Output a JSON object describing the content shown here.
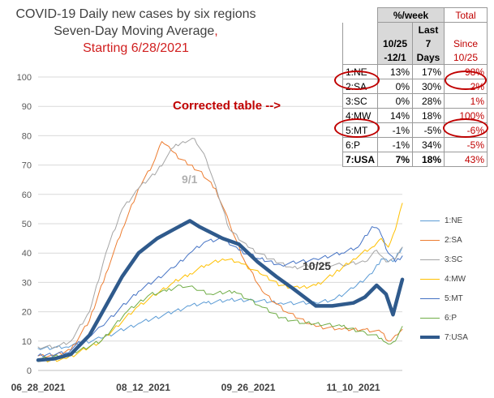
{
  "header": {
    "title_line1": "COVID-19 Daily new cases by six regions",
    "title_line2": "Seven-Day Moving Average",
    "title_line2_comma": ",",
    "title_line3": "Starting 6/28/2021"
  },
  "annotations": {
    "corrected_table": "Corrected table -->",
    "peak_label": "9/1",
    "recent_label": "10/25"
  },
  "table": {
    "head_pct": "%/week",
    "head_total": "Total",
    "head_last": "Last",
    "head_7": "7",
    "head_since": "Since",
    "head_range_a": "10/25",
    "head_range_b": "-12/1",
    "head_days": "Days",
    "head_since_date": "10/25",
    "rows": [
      {
        "label": "1:NE",
        "range": "13%",
        "last7": "17%",
        "total": "98%"
      },
      {
        "label": "2:SA",
        "range": "0%",
        "last7": "30%",
        "total": "2%"
      },
      {
        "label": "3:SC",
        "range": "0%",
        "last7": "28%",
        "total": "1%"
      },
      {
        "label": "4:MW",
        "range": "14%",
        "last7": "18%",
        "total": "100%"
      },
      {
        "label": "5:MT",
        "range": "-1%",
        "last7": "-5%",
        "total": "-6%"
      },
      {
        "label": "6:P",
        "range": "-1%",
        "last7": "34%",
        "total": "-5%"
      },
      {
        "label": "7:USA",
        "range": "7%",
        "last7": "18%",
        "total": "43%"
      }
    ]
  },
  "chart_data": {
    "type": "line",
    "title": "COVID-19 Daily new cases by six regions Seven-Day Moving Average, Starting 6/28/2021",
    "x_start": "2021-06-28",
    "x_end": "2021-12-01",
    "x_ticks": [
      "06_28_2021",
      "08_12_2021",
      "09_26_2021",
      "11_10_2021"
    ],
    "y_ticks": [
      "0",
      "10",
      "20",
      "30",
      "40",
      "50",
      "60",
      "70",
      "80",
      "90",
      "100"
    ],
    "ylim": [
      0,
      100
    ],
    "grid": true,
    "legend_position": "right",
    "series": [
      {
        "name": "1:NE",
        "color": "#5b9bd5",
        "width": 1,
        "points": [
          [
            "2021-06-28",
            7.5
          ],
          [
            "2021-07-10",
            8
          ],
          [
            "2021-07-25",
            11
          ],
          [
            "2021-08-10",
            16
          ],
          [
            "2021-08-25",
            20
          ],
          [
            "2021-09-01",
            22
          ],
          [
            "2021-09-08",
            23
          ],
          [
            "2021-09-18",
            24
          ],
          [
            "2021-09-28",
            24
          ],
          [
            "2021-10-10",
            23
          ],
          [
            "2021-10-25",
            23
          ],
          [
            "2021-11-01",
            24
          ],
          [
            "2021-11-10",
            28
          ],
          [
            "2021-11-18",
            33
          ],
          [
            "2021-11-22",
            38
          ],
          [
            "2021-11-25",
            37
          ],
          [
            "2021-11-28",
            38
          ],
          [
            "2021-12-01",
            42
          ]
        ]
      },
      {
        "name": "2:SA",
        "color": "#ed7d31",
        "width": 1,
        "points": [
          [
            "2021-06-28",
            5
          ],
          [
            "2021-07-05",
            5
          ],
          [
            "2021-07-12",
            7
          ],
          [
            "2021-07-20",
            17
          ],
          [
            "2021-07-27",
            33
          ],
          [
            "2021-08-03",
            48
          ],
          [
            "2021-08-10",
            62
          ],
          [
            "2021-08-16",
            70
          ],
          [
            "2021-08-20",
            78
          ],
          [
            "2021-08-24",
            75
          ],
          [
            "2021-08-28",
            72
          ],
          [
            "2021-09-01",
            70
          ],
          [
            "2021-09-05",
            68
          ],
          [
            "2021-09-12",
            62
          ],
          [
            "2021-09-18",
            50
          ],
          [
            "2021-09-24",
            38
          ],
          [
            "2021-10-02",
            27
          ],
          [
            "2021-10-12",
            20
          ],
          [
            "2021-10-25",
            15
          ],
          [
            "2021-11-05",
            14
          ],
          [
            "2021-11-15",
            14
          ],
          [
            "2021-11-22",
            13
          ],
          [
            "2021-11-25",
            10
          ],
          [
            "2021-11-28",
            12
          ],
          [
            "2021-12-01",
            14
          ]
        ]
      },
      {
        "name": "3:SC",
        "color": "#a5a5a5",
        "width": 1,
        "points": [
          [
            "2021-06-28",
            8
          ],
          [
            "2021-07-05",
            8
          ],
          [
            "2021-07-12",
            10
          ],
          [
            "2021-07-20",
            20
          ],
          [
            "2021-07-27",
            40
          ],
          [
            "2021-08-03",
            55
          ],
          [
            "2021-08-10",
            62
          ],
          [
            "2021-08-18",
            68
          ],
          [
            "2021-08-25",
            76
          ],
          [
            "2021-08-29",
            78
          ],
          [
            "2021-09-03",
            79
          ],
          [
            "2021-09-08",
            72
          ],
          [
            "2021-09-13",
            60
          ],
          [
            "2021-09-18",
            48
          ],
          [
            "2021-09-26",
            42
          ],
          [
            "2021-10-05",
            38
          ],
          [
            "2021-10-15",
            35
          ],
          [
            "2021-10-25",
            36
          ],
          [
            "2021-11-05",
            36
          ],
          [
            "2021-11-15",
            37
          ],
          [
            "2021-11-20",
            41
          ],
          [
            "2021-11-24",
            37
          ],
          [
            "2021-11-28",
            38
          ],
          [
            "2021-12-01",
            42
          ]
        ]
      },
      {
        "name": "4:MW",
        "color": "#ffc000",
        "width": 1,
        "points": [
          [
            "2021-06-28",
            3
          ],
          [
            "2021-07-10",
            4
          ],
          [
            "2021-07-25",
            10
          ],
          [
            "2021-08-10",
            22
          ],
          [
            "2021-08-25",
            30
          ],
          [
            "2021-09-01",
            33
          ],
          [
            "2021-09-08",
            36
          ],
          [
            "2021-09-15",
            38
          ],
          [
            "2021-09-22",
            37
          ],
          [
            "2021-10-01",
            33
          ],
          [
            "2021-10-10",
            29
          ],
          [
            "2021-10-18",
            28
          ],
          [
            "2021-10-25",
            29
          ],
          [
            "2021-11-02",
            33
          ],
          [
            "2021-11-10",
            38
          ],
          [
            "2021-11-18",
            42
          ],
          [
            "2021-11-22",
            45
          ],
          [
            "2021-11-25",
            42
          ],
          [
            "2021-11-28",
            48
          ],
          [
            "2021-12-01",
            57
          ]
        ]
      },
      {
        "name": "5:MT",
        "color": "#4472c4",
        "width": 1,
        "points": [
          [
            "2021-06-28",
            5
          ],
          [
            "2021-07-10",
            6
          ],
          [
            "2021-07-25",
            15
          ],
          [
            "2021-08-10",
            27
          ],
          [
            "2021-08-25",
            35
          ],
          [
            "2021-09-01",
            40
          ],
          [
            "2021-09-08",
            44
          ],
          [
            "2021-09-15",
            45
          ],
          [
            "2021-09-22",
            41
          ],
          [
            "2021-10-01",
            38
          ],
          [
            "2021-10-10",
            36
          ],
          [
            "2021-10-25",
            38
          ],
          [
            "2021-11-05",
            40
          ],
          [
            "2021-11-12",
            42
          ],
          [
            "2021-11-18",
            49
          ],
          [
            "2021-11-21",
            48
          ],
          [
            "2021-11-25",
            40
          ],
          [
            "2021-11-28",
            37
          ],
          [
            "2021-12-01",
            39
          ]
        ]
      },
      {
        "name": "6:P",
        "color": "#70ad47",
        "width": 1,
        "points": [
          [
            "2021-06-28",
            4
          ],
          [
            "2021-07-10",
            5
          ],
          [
            "2021-07-25",
            10
          ],
          [
            "2021-08-05",
            20
          ],
          [
            "2021-08-15",
            26
          ],
          [
            "2021-08-22",
            27
          ],
          [
            "2021-08-28",
            29
          ],
          [
            "2021-09-03",
            28
          ],
          [
            "2021-09-10",
            26
          ],
          [
            "2021-09-20",
            27
          ],
          [
            "2021-10-01",
            22
          ],
          [
            "2021-10-10",
            18
          ],
          [
            "2021-10-20",
            16
          ],
          [
            "2021-10-25",
            16
          ],
          [
            "2021-11-05",
            15
          ],
          [
            "2021-11-15",
            13
          ],
          [
            "2021-11-22",
            11
          ],
          [
            "2021-11-25",
            9
          ],
          [
            "2021-11-28",
            10
          ],
          [
            "2021-12-01",
            15
          ]
        ]
      },
      {
        "name": "7:USA",
        "color": "#2f5a8c",
        "width": 4.5,
        "points": [
          [
            "2021-06-28",
            3.5
          ],
          [
            "2021-07-05",
            4
          ],
          [
            "2021-07-12",
            5.5
          ],
          [
            "2021-07-20",
            12
          ],
          [
            "2021-07-27",
            22
          ],
          [
            "2021-08-03",
            32
          ],
          [
            "2021-08-10",
            40
          ],
          [
            "2021-08-18",
            45
          ],
          [
            "2021-08-25",
            48
          ],
          [
            "2021-09-01",
            51
          ],
          [
            "2021-09-05",
            49
          ],
          [
            "2021-09-10",
            47
          ],
          [
            "2021-09-15",
            45
          ],
          [
            "2021-09-22",
            43
          ],
          [
            "2021-09-30",
            37
          ],
          [
            "2021-10-08",
            32
          ],
          [
            "2021-10-15",
            28
          ],
          [
            "2021-10-25",
            22
          ],
          [
            "2021-11-01",
            22
          ],
          [
            "2021-11-10",
            23
          ],
          [
            "2021-11-15",
            25
          ],
          [
            "2021-11-20",
            29
          ],
          [
            "2021-11-24",
            26
          ],
          [
            "2021-11-27",
            19
          ],
          [
            "2021-11-30",
            28
          ],
          [
            "2021-12-01",
            31
          ]
        ]
      }
    ]
  }
}
